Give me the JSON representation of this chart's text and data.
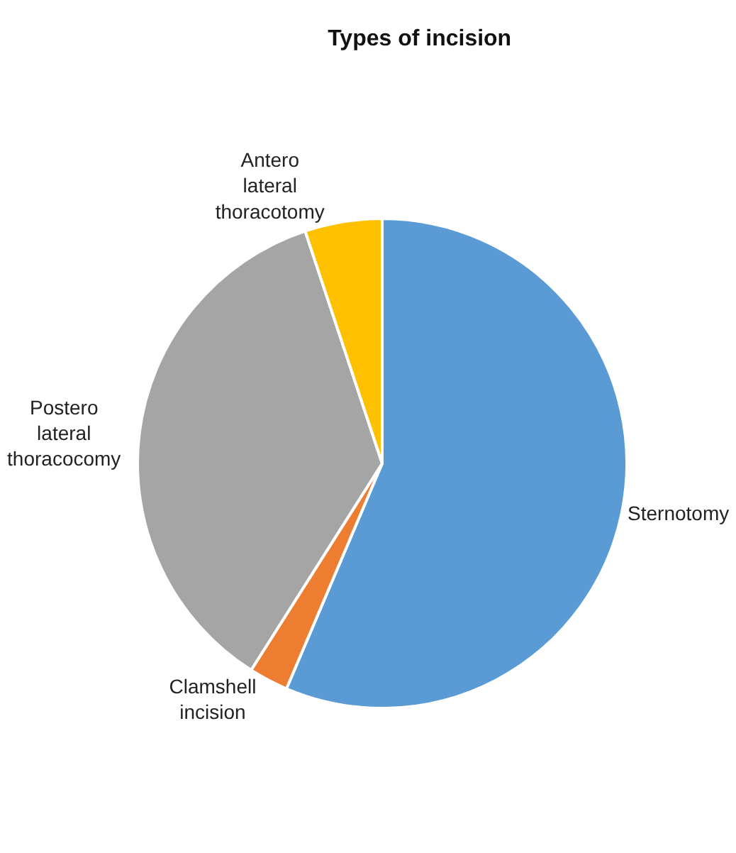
{
  "chart_data": {
    "type": "pie",
    "title": "Types of incision",
    "categories": [
      "Sternotomy",
      "Clamshell incision",
      "Postero lateral thoracocomy",
      "Antero lateral thoracotomy"
    ],
    "values": [
      56.4,
      2.6,
      35.9,
      5.1
    ],
    "colors": [
      "#5b9bd5",
      "#ed7d31",
      "#a5a5a5",
      "#ffc000"
    ],
    "legend": false
  }
}
